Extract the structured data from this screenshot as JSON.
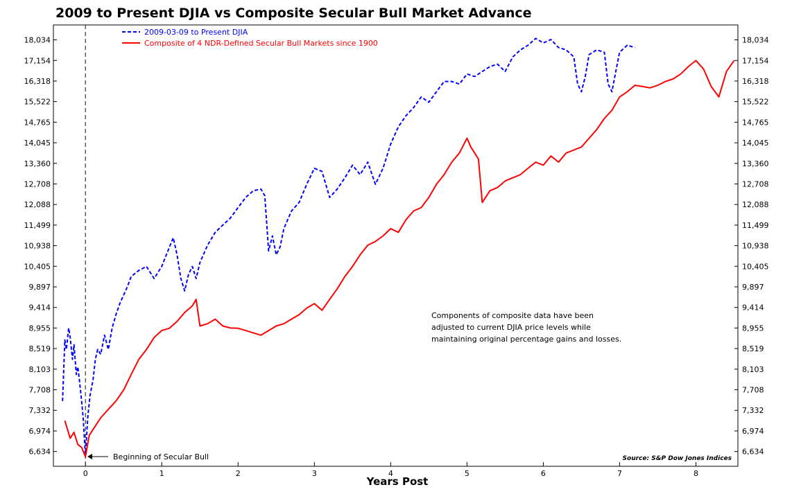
{
  "chart_data": {
    "type": "line",
    "title": "2009 to Present DJIA vs Composite Secular Bull Market Advance",
    "xlabel": "Years Post",
    "ylabel": "",
    "y_scale": "log",
    "xlim": [
      -0.42,
      8.55
    ],
    "ylim": [
      6400,
      18700
    ],
    "x_ticks": [
      0,
      1,
      2,
      3,
      4,
      5,
      6,
      7,
      8
    ],
    "y_ticks": [
      6634,
      6974,
      7332,
      7708,
      8103,
      8519,
      8955,
      9414,
      9897,
      10405,
      10938,
      11499,
      12088,
      12708,
      13360,
      14045,
      14765,
      15522,
      16318,
      17154,
      18034
    ],
    "y_tick_labels": [
      "6,634",
      "6,974",
      "7,332",
      "7,708",
      "8,103",
      "8,519",
      "8,955",
      "9,414",
      "9,897",
      "10,405",
      "10,938",
      "11,499",
      "12,088",
      "12,708",
      "13,360",
      "14,045",
      "14,765",
      "15,522",
      "16,318",
      "17,154",
      "18,034"
    ],
    "grid": false,
    "legend_position": "top-left",
    "series": [
      {
        "name": "2009-03-09 to Present DJIA",
        "color": "#0000ff",
        "style": "dashed",
        "x": [
          -0.3,
          -0.27,
          -0.25,
          -0.22,
          -0.2,
          -0.17,
          -0.15,
          -0.12,
          -0.1,
          -0.08,
          -0.05,
          -0.03,
          0,
          0.03,
          0.06,
          0.1,
          0.13,
          0.16,
          0.2,
          0.25,
          0.3,
          0.35,
          0.4,
          0.45,
          0.5,
          0.55,
          0.6,
          0.7,
          0.8,
          0.9,
          1.0,
          1.05,
          1.1,
          1.15,
          1.2,
          1.25,
          1.3,
          1.35,
          1.4,
          1.45,
          1.5,
          1.6,
          1.7,
          1.8,
          1.9,
          2.0,
          2.1,
          2.2,
          2.3,
          2.35,
          2.4,
          2.45,
          2.5,
          2.55,
          2.6,
          2.65,
          2.7,
          2.8,
          2.9,
          3.0,
          3.1,
          3.2,
          3.3,
          3.4,
          3.5,
          3.6,
          3.7,
          3.8,
          3.9,
          4.0,
          4.1,
          4.2,
          4.3,
          4.4,
          4.5,
          4.6,
          4.7,
          4.8,
          4.9,
          5.0,
          5.1,
          5.2,
          5.3,
          5.4,
          5.5,
          5.6,
          5.7,
          5.8,
          5.9,
          6.0,
          6.1,
          6.2,
          6.3,
          6.4,
          6.45,
          6.5,
          6.55,
          6.6,
          6.7,
          6.8,
          6.85,
          6.9,
          6.95,
          7.0,
          7.1,
          7.2
        ],
        "values": [
          7500,
          8700,
          8500,
          8955,
          8750,
          8300,
          8600,
          8000,
          8150,
          7900,
          7500,
          7200,
          6550,
          7200,
          7600,
          7900,
          8300,
          8500,
          8400,
          8800,
          8500,
          8955,
          9250,
          9500,
          9700,
          9900,
          10150,
          10300,
          10400,
          10100,
          10400,
          10650,
          10900,
          11150,
          10700,
          10100,
          9800,
          10200,
          10400,
          10100,
          10500,
          10950,
          11300,
          11500,
          11700,
          12000,
          12300,
          12500,
          12550,
          12350,
          10800,
          11200,
          10700,
          10900,
          11400,
          11650,
          11900,
          12150,
          12700,
          13200,
          13100,
          12300,
          12550,
          12900,
          13300,
          13000,
          13400,
          12700,
          13200,
          14000,
          14600,
          15000,
          15300,
          15700,
          15500,
          15900,
          16300,
          16300,
          16200,
          16600,
          16500,
          16700,
          16900,
          17000,
          16700,
          17300,
          17600,
          17800,
          18100,
          17900,
          18050,
          17700,
          17600,
          17300,
          16200,
          15900,
          16500,
          17400,
          17600,
          17500,
          16200,
          15900,
          16700,
          17500,
          17800,
          17700
        ]
      },
      {
        "name": "Composite of 4 NDR-Defined Secular Bull Markets since 1900",
        "color": "#ff0000",
        "style": "solid",
        "x": [
          -0.27,
          -0.2,
          -0.15,
          -0.1,
          -0.05,
          0,
          0.05,
          0.1,
          0.2,
          0.3,
          0.4,
          0.5,
          0.6,
          0.7,
          0.8,
          0.9,
          1.0,
          1.1,
          1.2,
          1.3,
          1.4,
          1.45,
          1.5,
          1.6,
          1.7,
          1.8,
          1.9,
          2.0,
          2.1,
          2.2,
          2.3,
          2.4,
          2.5,
          2.6,
          2.7,
          2.8,
          2.9,
          3.0,
          3.1,
          3.2,
          3.3,
          3.4,
          3.5,
          3.6,
          3.7,
          3.8,
          3.9,
          4.0,
          4.1,
          4.2,
          4.3,
          4.4,
          4.5,
          4.6,
          4.7,
          4.8,
          4.9,
          5.0,
          5.05,
          5.1,
          5.15,
          5.2,
          5.3,
          5.4,
          5.5,
          5.6,
          5.7,
          5.8,
          5.9,
          6.0,
          6.1,
          6.2,
          6.3,
          6.4,
          6.5,
          6.6,
          6.7,
          6.8,
          6.9,
          7.0,
          7.1,
          7.2,
          7.3,
          7.4,
          7.5,
          7.6,
          7.7,
          7.8,
          7.9,
          8.0,
          8.1,
          8.2,
          8.3,
          8.4,
          8.5
        ],
        "values": [
          7150,
          6850,
          6950,
          6750,
          6700,
          6550,
          6900,
          7000,
          7200,
          7350,
          7500,
          7700,
          8000,
          8300,
          8500,
          8750,
          8900,
          8950,
          9100,
          9300,
          9450,
          9600,
          9000,
          9050,
          9150,
          9000,
          8955,
          8950,
          8900,
          8850,
          8800,
          8900,
          9000,
          9050,
          9150,
          9250,
          9400,
          9500,
          9350,
          9600,
          9850,
          10150,
          10400,
          10700,
          10950,
          11050,
          11200,
          11400,
          11300,
          11650,
          11900,
          12000,
          12300,
          12700,
          13000,
          13400,
          13700,
          14200,
          13900,
          13700,
          13500,
          12150,
          12500,
          12600,
          12800,
          12900,
          13000,
          13200,
          13400,
          13300,
          13600,
          13400,
          13700,
          13800,
          13900,
          14200,
          14500,
          14900,
          15200,
          15700,
          15900,
          16150,
          16100,
          16050,
          16150,
          16300,
          16400,
          16600,
          16900,
          17150,
          16800,
          16100,
          15700,
          16700,
          17154
        ]
      }
    ],
    "annotations": {
      "event_marker": "Beginning of Secular Bull",
      "note_lines": [
        "Components of composite data have been",
        "adjusted to current DJIA price levels while",
        "maintaining original percentage gains and losses."
      ],
      "source": "Source:  S&P Dow Jones Indices"
    }
  }
}
